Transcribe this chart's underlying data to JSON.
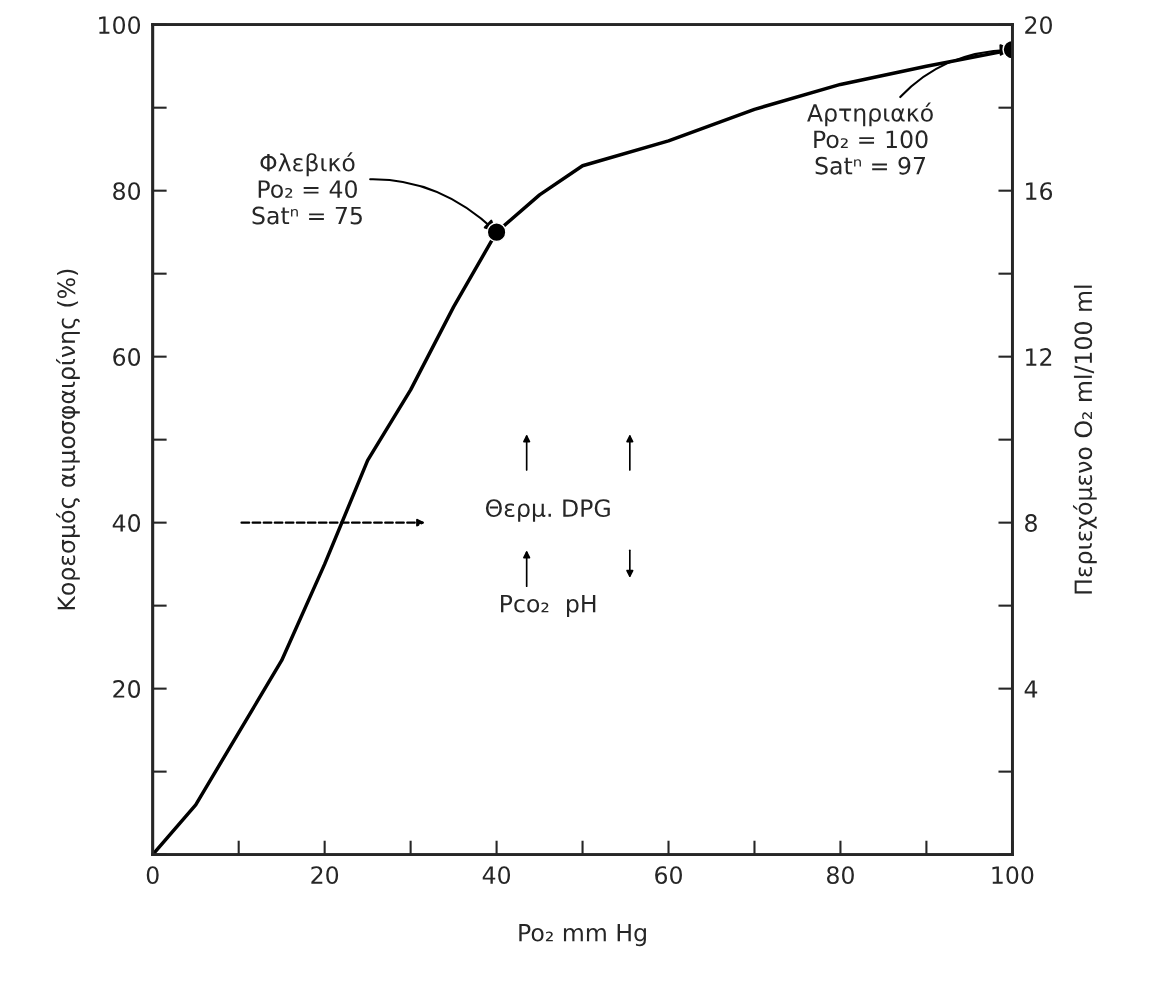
{
  "chart_data": {
    "type": "line",
    "xlabel": "Po₂ mm Hg",
    "ylabel": "Κορεσμός αιμοσφαιρίνης (%)",
    "y2label": "Περιεχόμενο O₂ ml/100 ml",
    "xlim": [
      0,
      100
    ],
    "ylim": [
      0,
      100
    ],
    "y2lim": [
      0,
      20
    ],
    "xticks": [
      0,
      {
        "value": 10,
        "label": null
      },
      20,
      {
        "value": 30,
        "label": null
      },
      40,
      {
        "value": 50,
        "label": null
      },
      60,
      {
        "value": 70,
        "label": null
      },
      80,
      {
        "value": 90,
        "label": null
      },
      100
    ],
    "yticks": [
      {
        "value": 0,
        "label": null
      },
      {
        "value": 10,
        "label": null
      },
      20,
      {
        "value": 30,
        "label": null
      },
      40,
      {
        "value": 50,
        "label": null
      },
      60,
      {
        "value": 70,
        "label": null
      },
      80,
      {
        "value": 90,
        "label": null
      },
      100
    ],
    "y2ticks": [
      {
        "value": 0,
        "label": null
      },
      {
        "value": 2,
        "label": null
      },
      4,
      {
        "value": 6,
        "label": null
      },
      8,
      {
        "value": 10,
        "label": null
      },
      12,
      {
        "value": 14,
        "label": null
      },
      16,
      {
        "value": 18,
        "label": null
      },
      20
    ],
    "series": [
      {
        "color": "#000000",
        "line_style": "solid",
        "marker": "none",
        "x": [
          0,
          5,
          10,
          15,
          20,
          25,
          30,
          35,
          40,
          45,
          50,
          60,
          70,
          80,
          90,
          100
        ],
        "values": [
          0,
          6,
          14.7,
          23.4,
          35,
          47.5,
          56,
          66,
          75,
          79.5,
          83,
          86,
          89.8,
          92.8,
          95,
          97
        ]
      },
      {
        "type": "scatter",
        "color": "#000000",
        "marker": "circle",
        "x": [
          40,
          100
        ],
        "values": [
          75,
          97
        ]
      }
    ],
    "annotations": [
      {
        "text": "Φλεβικό\nPo₂ = 40\nSatⁿ = 75",
        "x": 40,
        "y": 75
      },
      {
        "text": "Αρτηριακό\nPo₂ = 100\nSatⁿ = 97",
        "x": 100,
        "y": 97
      },
      "Θερμ. DPG",
      "Pco₂  pH"
    ]
  }
}
